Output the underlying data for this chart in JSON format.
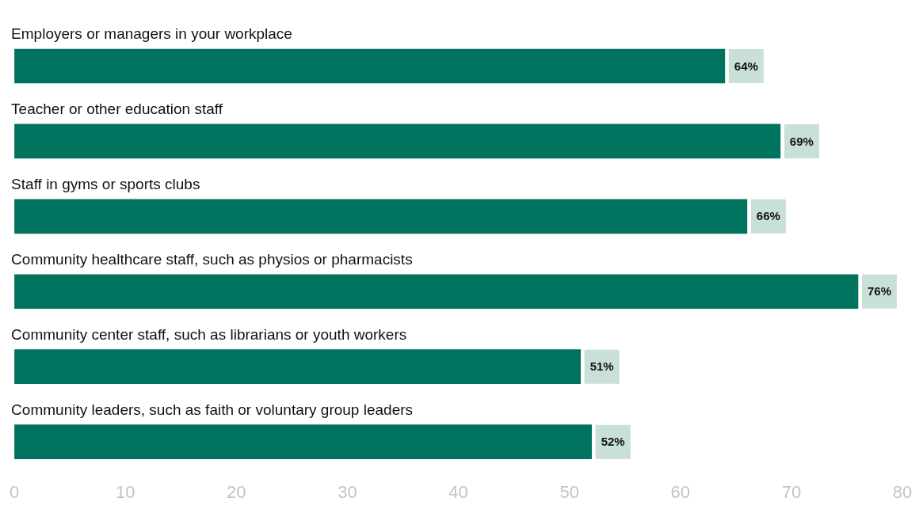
{
  "chart_data": {
    "type": "bar",
    "orientation": "horizontal",
    "categories": [
      "Employers or managers in your workplace",
      "Teacher or other education staff",
      "Staff in gyms or sports clubs",
      "Community healthcare staff, such as physios or pharmacists",
      "Community center staff, such as librarians or youth workers",
      "Community leaders, such as faith or voluntary group leaders"
    ],
    "values": [
      64,
      69,
      66,
      76,
      51,
      52
    ],
    "value_labels": [
      "64%",
      "69%",
      "66%",
      "76%",
      "51%",
      "52%"
    ],
    "color": "#00735f",
    "xlim": [
      0,
      80
    ],
    "xticks": [
      0,
      10,
      20,
      30,
      40,
      50,
      60,
      70,
      80
    ],
    "grid": false,
    "legend": false
  }
}
